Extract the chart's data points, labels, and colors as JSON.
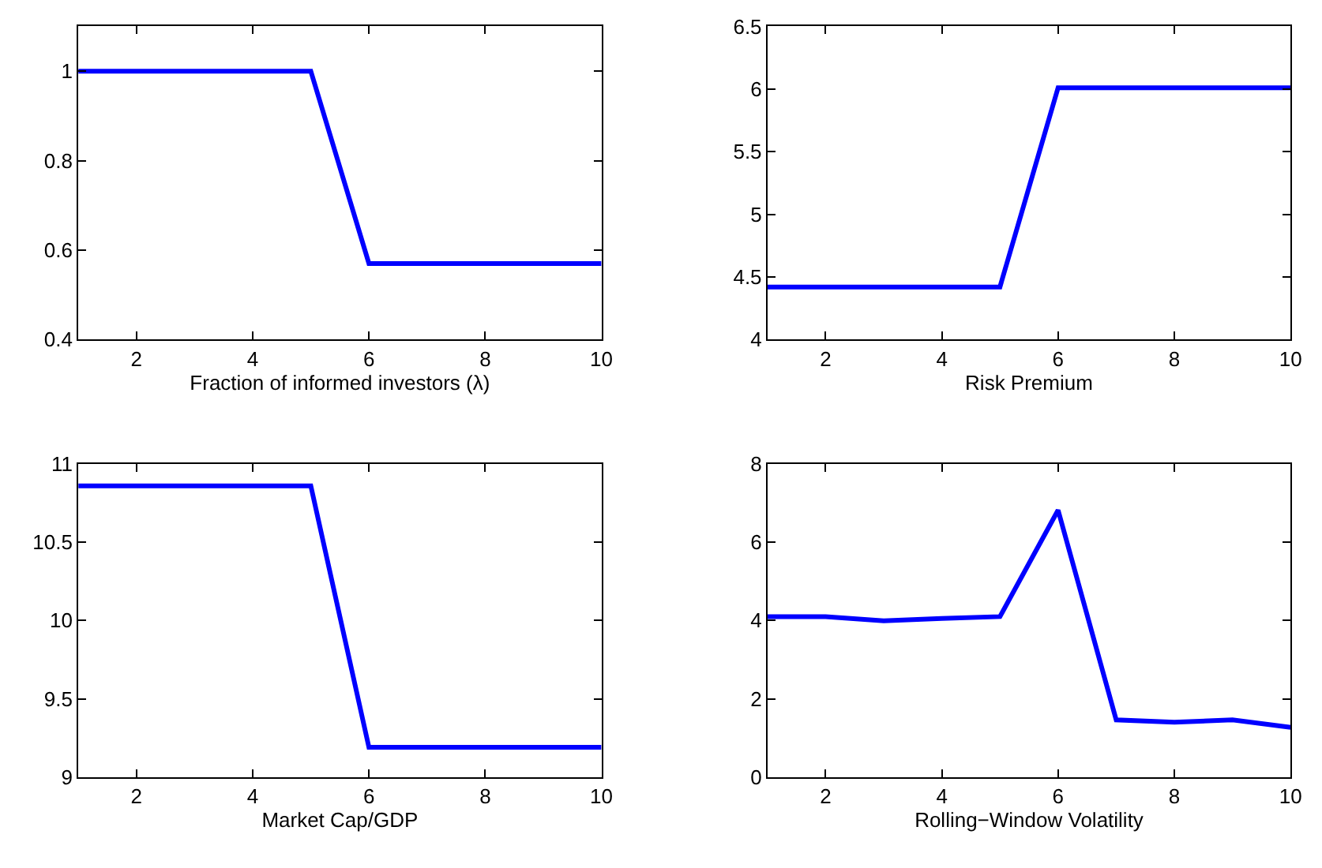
{
  "chart_data": [
    {
      "type": "line",
      "xlabel": "Fraction of informed investors (λ)",
      "x": [
        1,
        2,
        3,
        4,
        5,
        6,
        7,
        8,
        9,
        10
      ],
      "series": [
        {
          "color": "#0000ff",
          "values": [
            1,
            1,
            1,
            1,
            1,
            0.57,
            0.57,
            0.57,
            0.57,
            0.57
          ]
        }
      ],
      "xlim": [
        1,
        10
      ],
      "xticks": [
        2,
        4,
        6,
        8,
        10
      ],
      "ylim": [
        0.4,
        1.1
      ],
      "yticks": [
        0.4,
        0.6,
        0.8,
        1
      ],
      "grid": false,
      "marker": "none",
      "line_style": "solid"
    },
    {
      "type": "line",
      "xlabel": "Risk Premium",
      "x": [
        1,
        2,
        3,
        4,
        5,
        6,
        7,
        8,
        9,
        10
      ],
      "series": [
        {
          "color": "#0000ff",
          "values": [
            4.42,
            4.42,
            4.42,
            4.42,
            4.42,
            6.01,
            6.01,
            6.01,
            6.01,
            6.01
          ]
        }
      ],
      "xlim": [
        1,
        10
      ],
      "xticks": [
        2,
        4,
        6,
        8,
        10
      ],
      "ylim": [
        4,
        6.5
      ],
      "yticks": [
        4,
        4.5,
        5,
        5.5,
        6,
        6.5
      ],
      "grid": false,
      "marker": "none",
      "line_style": "solid"
    },
    {
      "type": "line",
      "xlabel": "Market Cap/GDP",
      "x": [
        1,
        2,
        3,
        4,
        5,
        6,
        7,
        8,
        9,
        10
      ],
      "series": [
        {
          "color": "#0000ff",
          "values": [
            10.86,
            10.86,
            10.86,
            10.86,
            10.86,
            9.19,
            9.19,
            9.19,
            9.19,
            9.19
          ]
        }
      ],
      "xlim": [
        1,
        10
      ],
      "xticks": [
        2,
        4,
        6,
        8,
        10
      ],
      "ylim": [
        9,
        11
      ],
      "yticks": [
        9,
        9.5,
        10,
        10.5,
        11
      ],
      "grid": false,
      "marker": "none",
      "line_style": "solid"
    },
    {
      "type": "line",
      "xlabel": "Rolling−Window Volatility",
      "x": [
        1,
        2,
        3,
        4,
        5,
        6,
        7,
        8,
        9,
        10
      ],
      "series": [
        {
          "color": "#0000ff",
          "values": [
            4.1,
            4.1,
            3.99,
            4.05,
            4.1,
            6.82,
            1.46,
            1.4,
            1.46,
            1.27
          ]
        }
      ],
      "xlim": [
        1,
        10
      ],
      "xticks": [
        2,
        4,
        6,
        8,
        10
      ],
      "ylim": [
        0,
        8
      ],
      "yticks": [
        0,
        2,
        4,
        6,
        8
      ],
      "grid": false,
      "marker": "none",
      "line_style": "solid"
    }
  ]
}
